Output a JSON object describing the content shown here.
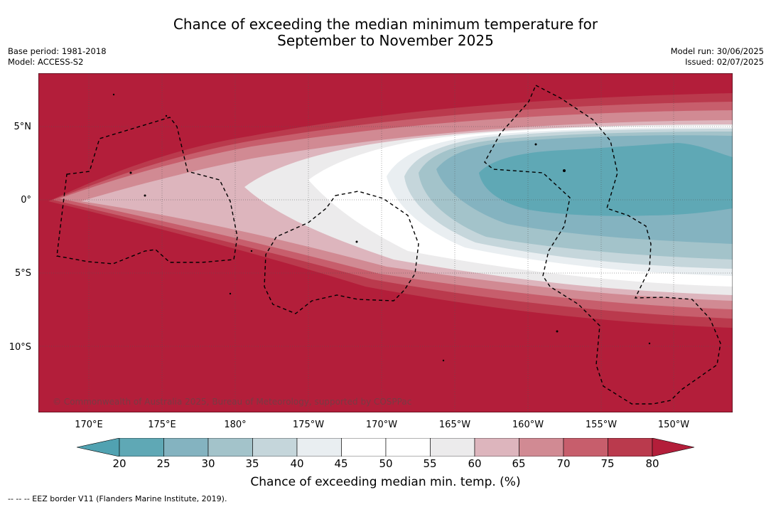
{
  "title": {
    "line1": "Chance of exceeding the median minimum temperature for",
    "line2": "September to November 2025"
  },
  "meta_left": {
    "base_period": "Base period: 1981-2018",
    "model": "Model: ACCESS-S2"
  },
  "meta_right": {
    "model_run": "Model run: 30/06/2025",
    "issued": "Issued: 02/07/2025"
  },
  "map": {
    "lat_labels": [
      "5°N",
      "0°",
      "5°S",
      "10°S"
    ],
    "lon_labels": [
      "170°E",
      "175°E",
      "180°",
      "175°W",
      "170°W",
      "165°W",
      "160°W",
      "155°W",
      "150°W"
    ],
    "copyright": "© Commonwealth of Australia 2025, Bureau of Meteorology, supported by COSPPac"
  },
  "colorbar": {
    "ticks": [
      "20",
      "25",
      "30",
      "35",
      "40",
      "45",
      "50",
      "55",
      "60",
      "65",
      "70",
      "75",
      "80"
    ],
    "colors": [
      "#5fa8b5",
      "#84b3c0",
      "#a3c3ca",
      "#c5d6db",
      "#e9eef1",
      "#ffffff",
      "#ffffff",
      "#ecebec",
      "#ddb5bd",
      "#d18a93",
      "#c75e6c",
      "#ba3a4d"
    ],
    "under_color": "#51a2b1",
    "over_color": "#b31e3a",
    "label": "Chance of exceeding median min. temp. (%)"
  },
  "footnote": "--  --  -- EEZ border V11 (Flanders Marine Institute, 2019)."
}
